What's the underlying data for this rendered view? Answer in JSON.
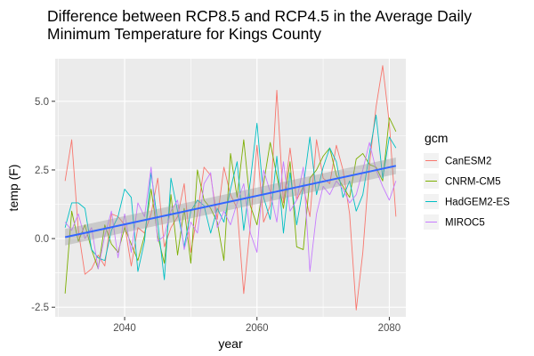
{
  "chart_data": {
    "type": "line",
    "title_lines": [
      "Difference between RCP8.5 and RCP4.5 in the Average Daily",
      "Minimum Temperature for Kings County"
    ],
    "xlabel": "year",
    "ylabel": "temp (F)",
    "xlim": [
      2029.5,
      2082.5
    ],
    "ylim": [
      -2.85,
      6.55
    ],
    "x_ticks": [
      2040,
      2060,
      2080
    ],
    "x_tick_labels": [
      "2040",
      "2060",
      "2080"
    ],
    "y_ticks": [
      -2.5,
      0.0,
      2.5,
      5.0
    ],
    "y_tick_labels": [
      "-2.5",
      "0.0",
      "2.5",
      "5.0"
    ],
    "grid": true,
    "legend": {
      "title": "gcm",
      "position": "right"
    },
    "x": [
      2031,
      2032,
      2033,
      2034,
      2035,
      2036,
      2037,
      2038,
      2039,
      2040,
      2041,
      2042,
      2043,
      2044,
      2045,
      2046,
      2047,
      2048,
      2049,
      2050,
      2051,
      2052,
      2053,
      2054,
      2055,
      2056,
      2057,
      2058,
      2059,
      2060,
      2061,
      2062,
      2063,
      2064,
      2065,
      2066,
      2067,
      2068,
      2069,
      2070,
      2071,
      2072,
      2073,
      2074,
      2075,
      2076,
      2077,
      2078,
      2079,
      2080,
      2081
    ],
    "series": [
      {
        "name": "CanESM2",
        "color": "#F8766D",
        "values": [
          2.1,
          3.6,
          0.3,
          -1.3,
          -1.1,
          -0.6,
          -1.0,
          0.9,
          0.8,
          0.5,
          -1.0,
          0.4,
          0.2,
          0.9,
          2.2,
          -0.3,
          0.4,
          0.8,
          2.0,
          -0.5,
          0.9,
          2.6,
          2.3,
          0.7,
          2.6,
          1.6,
          1.1,
          -2.0,
          0.5,
          3.4,
          0.6,
          1.2,
          5.4,
          1.3,
          3.3,
          1.4,
          1.9,
          0.8,
          3.6,
          2.2,
          2.0,
          3.4,
          2.5,
          0.9,
          -2.6,
          -0.5,
          2.7,
          4.8,
          6.3,
          4.2,
          0.8
        ]
      },
      {
        "name": "CNRM-CM5",
        "color": "#7CAE00",
        "values": [
          -2.0,
          1.0,
          -0.1,
          0.5,
          -0.4,
          -1.1,
          0.5,
          -0.2,
          -0.5,
          0.4,
          -0.2,
          -0.8,
          0.1,
          1.8,
          0.1,
          -0.9,
          1.6,
          -0.6,
          1.1,
          -0.9,
          2.5,
          1.4,
          1.1,
          0.6,
          -0.8,
          3.1,
          1.5,
          3.6,
          1.2,
          0.5,
          2.0,
          3.5,
          2.3,
          1.1,
          2.8,
          -0.3,
          -0.4,
          2.2,
          2.5,
          3.0,
          3.3,
          2.3,
          1.9,
          1.5,
          2.9,
          3.1,
          2.7,
          2.6,
          2.1,
          4.4,
          3.9
        ]
      },
      {
        "name": "HadGEM2-ES",
        "color": "#00BFC4",
        "values": [
          0.4,
          1.3,
          1.3,
          1.1,
          -0.4,
          -0.7,
          -0.8,
          0.3,
          0.8,
          1.8,
          1.5,
          -1.2,
          -0.1,
          2.4,
          0.6,
          -1.5,
          2.2,
          1.0,
          -0.3,
          1.0,
          1.4,
          1.2,
          0.2,
          1.1,
          0.6,
          1.8,
          2.8,
          0.3,
          2.1,
          4.2,
          1.5,
          0.7,
          3.0,
          0.2,
          2.4,
          0.5,
          1.9,
          3.7,
          1.6,
          2.6,
          3.3,
          2.8,
          1.5,
          2.1,
          1.0,
          1.6,
          3.1,
          4.5,
          2.2,
          3.7,
          3.3
        ]
      },
      {
        "name": "MIROC5",
        "color": "#C77CFF",
        "values": [
          0.6,
          0.3,
          0.9,
          0.0,
          0.4,
          -1.1,
          0.1,
          1.0,
          -0.7,
          0.9,
          -0.5,
          1.3,
          0.8,
          2.6,
          -0.1,
          0.1,
          1.0,
          1.4,
          -0.4,
          0.6,
          0.2,
          2.0,
          2.4,
          0.4,
          1.0,
          0.5,
          1.3,
          2.0,
          0.2,
          -0.5,
          2.5,
          1.7,
          0.6,
          2.8,
          1.0,
          1.4,
          2.6,
          -1.2,
          0.9,
          1.9,
          1.6,
          2.1,
          1.8,
          1.3,
          1.6,
          2.5,
          3.5,
          2.5,
          1.9,
          1.4,
          2.1
        ]
      }
    ],
    "trend": {
      "label": "linear fit",
      "color": "#3366FF",
      "x": [
        2031,
        2081
      ],
      "y": [
        0.05,
        2.65
      ],
      "ci_halfwidth": 0.3
    }
  }
}
